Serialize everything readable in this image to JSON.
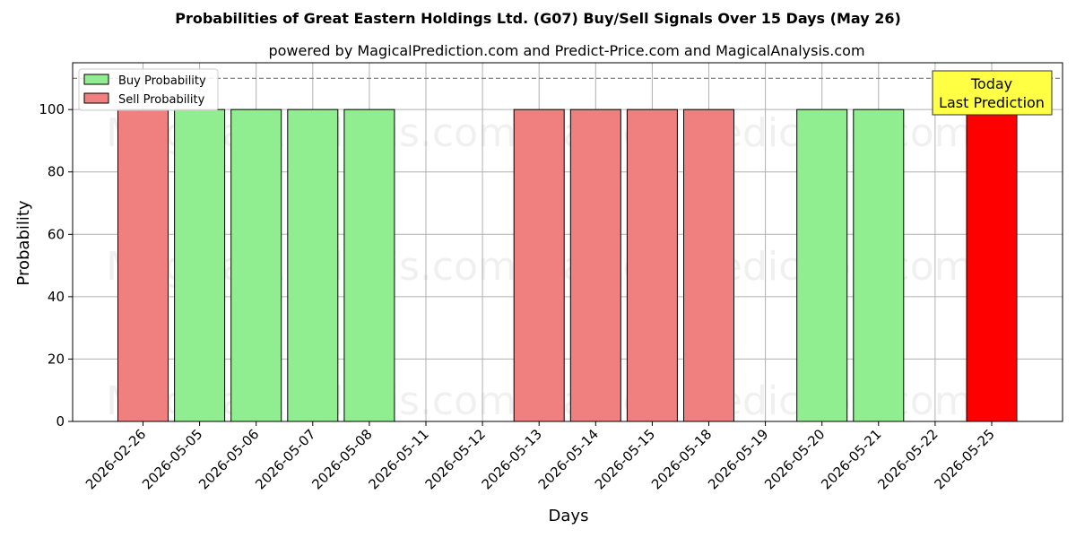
{
  "chart_data": {
    "type": "bar",
    "title": "Probabilities of Great Eastern Holdings Ltd. (G07) Buy/Sell Signals Over 15 Days (May 26)",
    "subtitle": "powered by MagicalPrediction.com and Predict-Price.com and MagicalAnalysis.com",
    "xlabel": "Days",
    "ylabel": "Probability",
    "ylim": [
      0,
      115
    ],
    "yticks": [
      0,
      20,
      40,
      60,
      80,
      100
    ],
    "grid": true,
    "legend_position": "top-left",
    "reference_line": 110,
    "categories": [
      "2026-02-26",
      "2026-05-05",
      "2026-05-06",
      "2026-05-07",
      "2026-05-08",
      "2026-05-11",
      "2026-05-12",
      "2026-05-13",
      "2026-05-14",
      "2026-05-15",
      "2026-05-18",
      "2026-05-19",
      "2026-05-20",
      "2026-05-21",
      "2026-05-22",
      "2026-05-25"
    ],
    "series": [
      {
        "name": "Buy Probability",
        "color": "#90ee90",
        "values": [
          0,
          100,
          100,
          100,
          100,
          0,
          0,
          0,
          0,
          0,
          0,
          0,
          100,
          100,
          0,
          0
        ]
      },
      {
        "name": "Sell Probability",
        "color": "#f08080",
        "values": [
          100,
          0,
          0,
          0,
          0,
          0,
          0,
          100,
          100,
          100,
          100,
          0,
          0,
          0,
          0,
          100
        ]
      }
    ],
    "highlight": {
      "index": 15,
      "color": "#ff0000"
    },
    "annotation": {
      "lines": [
        "Today",
        "Last Prediction"
      ],
      "color": "#ffff44"
    },
    "watermarks": [
      "MagicalAnalysis.com",
      "MagicalPrediction.com"
    ]
  }
}
